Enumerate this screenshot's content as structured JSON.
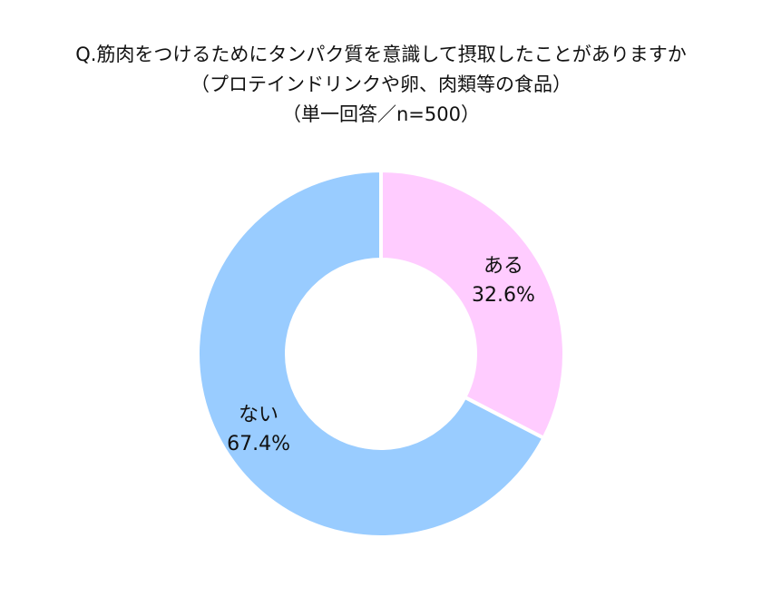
{
  "title": {
    "line1": "Q.筋肉をつけるためにタンパク質を意識して摂取したことがありますか",
    "line2": "（プロテインドリンクや卵、肉類等の食品）",
    "line3": "（単一回答／n=500）"
  },
  "chart_data": {
    "type": "pie",
    "donut": true,
    "title": "Q.筋肉をつけるためにタンパク質を意識して摂取したことがありますか",
    "legend": "none",
    "slices": [
      {
        "label": "ある",
        "value": 32.6,
        "value_label": "32.6%",
        "color": "#FFCCFF"
      },
      {
        "label": "ない",
        "value": 67.4,
        "value_label": "67.4%",
        "color": "#99CCFF"
      }
    ]
  }
}
